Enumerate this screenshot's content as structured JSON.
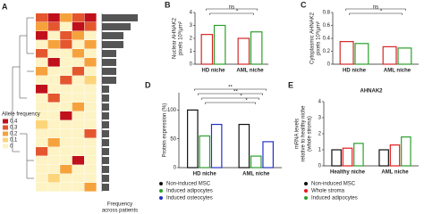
{
  "chart_data": [
    {
      "type": "heatmap",
      "label": "A",
      "legend_title": "Allele frequency",
      "columns": [
        null,
        null,
        null,
        null,
        null
      ],
      "levels": [
        0,
        0.1,
        0.2,
        0.3,
        0.4
      ],
      "level_colors": [
        "#fdf3c4",
        "#fcd57a",
        "#f6a23c",
        "#e4572e",
        "#c0101b"
      ],
      "values": [
        [
          0.3,
          0.4,
          0.2,
          0.3,
          0.4
        ],
        [
          0.2,
          0.3,
          0,
          0.4,
          0.3
        ],
        [
          0.4,
          0,
          0.3,
          0.2,
          0
        ],
        [
          0,
          0.2,
          0.3,
          0,
          0.2
        ],
        [
          0.3,
          0,
          0,
          0.2,
          0
        ],
        [
          0,
          0.4,
          0,
          0,
          0.2
        ],
        [
          0.2,
          0,
          0,
          0.3,
          0
        ],
        [
          0,
          0,
          0.3,
          0,
          0.1
        ],
        [
          0.4,
          0,
          0,
          0,
          0
        ],
        [
          0,
          0.3,
          0,
          0,
          0
        ],
        [
          0,
          0,
          0,
          0.2,
          0
        ],
        [
          0,
          0,
          0.4,
          0,
          0
        ],
        [
          0.1,
          0,
          0,
          0,
          0
        ],
        [
          0,
          0,
          0,
          0,
          0.3
        ],
        [
          0,
          0.2,
          0,
          0,
          0
        ],
        [
          0.3,
          0,
          0,
          0,
          0
        ],
        [
          0,
          0,
          0,
          0.4,
          0
        ],
        [
          0,
          0,
          0.2,
          0,
          0
        ],
        [
          0,
          0.1,
          0,
          0,
          0
        ],
        [
          0,
          0,
          0,
          0,
          0.2
        ]
      ],
      "frequency": [
        5,
        4,
        3,
        3,
        2,
        2,
        2,
        2,
        1,
        1,
        1,
        1,
        1,
        1,
        1,
        1,
        1,
        1,
        1,
        1
      ],
      "frequency_xlim": [
        0,
        5
      ],
      "frequency_color": "#555555",
      "xlabel": [
        "Frequency",
        "across patients"
      ]
    },
    {
      "type": "bar",
      "label": "B",
      "ylabel": [
        "Nuclear AHNAK2",
        "pixels 10³/µm²"
      ],
      "categories": [
        "HD niche",
        "AML niche"
      ],
      "series": [
        {
          "color": "#d62728",
          "values": [
            2.3,
            2.0
          ]
        },
        {
          "color": "#2ca02c",
          "values": [
            3.0,
            2.5
          ]
        }
      ],
      "ylim": [
        0,
        4
      ],
      "yticks": [
        0,
        1,
        2,
        3,
        4
      ],
      "annotations": [
        "ns",
        "*"
      ]
    },
    {
      "type": "bar",
      "label": "C",
      "ylabel": [
        "Cytoplasmic AHNAK2",
        "pixels 10³/µm²"
      ],
      "categories": [
        "HD niche",
        "AML niche"
      ],
      "series": [
        {
          "color": "#d62728",
          "values": [
            0.35,
            0.27
          ]
        },
        {
          "color": "#2ca02c",
          "values": [
            0.32,
            0.25
          ]
        }
      ],
      "ylim": [
        0,
        0.8
      ],
      "yticks": [
        0,
        0.2,
        0.4,
        0.6,
        0.8
      ],
      "annotations": [
        "ns",
        "*"
      ]
    },
    {
      "type": "bar",
      "label": "D",
      "ylabel": [
        "Protein expression (%)"
      ],
      "categories": [
        "HD niche",
        "AML niche"
      ],
      "series": [
        {
          "name": "Non-induced MSC",
          "color": "#111111",
          "values": [
            100,
            75
          ]
        },
        {
          "name": "Induced adipocytes",
          "color": "#2ca02c",
          "values": [
            55,
            20
          ]
        },
        {
          "name": "Induced osteocytes",
          "color": "#2432c8",
          "values": [
            75,
            45
          ]
        }
      ],
      "ylim": [
        0,
        130
      ],
      "yticks": [
        0,
        50,
        100
      ],
      "annotations": [
        "**",
        "**",
        "*",
        "*"
      ]
    },
    {
      "type": "bar",
      "label": "E",
      "title": "AHNAK2",
      "ylabel": [
        "mRNA levels",
        "relative to healthy niche",
        "(whole stroma)"
      ],
      "categories": [
        "Healthy niche",
        "AML niche"
      ],
      "series": [
        {
          "name": "Non-induced MSC",
          "color": "#111111",
          "values": [
            1.0,
            1.0
          ]
        },
        {
          "name": "Whole stroma",
          "color": "#e41a1c",
          "values": [
            1.1,
            1.3
          ]
        },
        {
          "name": "Induced adipocytes",
          "color": "#2ca02c",
          "values": [
            1.4,
            1.8
          ]
        }
      ],
      "ylim": [
        0,
        4
      ],
      "yticks": [
        0,
        1,
        2,
        3,
        4
      ],
      "annotations": []
    }
  ]
}
